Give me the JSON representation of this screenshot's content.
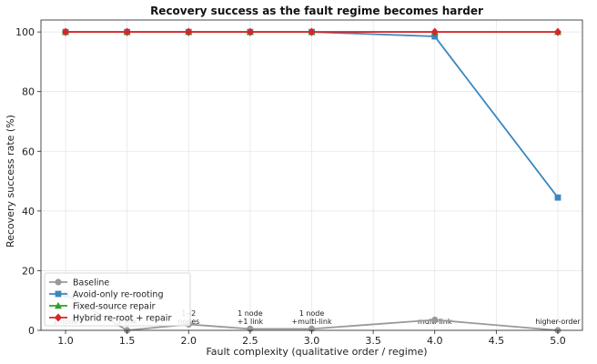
{
  "chart_data": {
    "type": "line",
    "title": "Recovery success as the fault regime becomes harder",
    "xlabel": "Fault complexity (qualitative order / regime)",
    "ylabel": "Recovery success rate (%)",
    "xlim": [
      0.8,
      5.2
    ],
    "ylim": [
      0,
      104
    ],
    "xticks": [
      "1.0",
      "1.5",
      "2.0",
      "2.5",
      "3.0",
      "3.5",
      "4.0",
      "4.5",
      "5.0"
    ],
    "yticks": [
      "0",
      "20",
      "40",
      "60",
      "80",
      "100"
    ],
    "grid": true,
    "legend_position": "bottom-left",
    "x": [
      1.0,
      1.5,
      2.0,
      2.5,
      3.0,
      4.0,
      5.0
    ],
    "series": [
      {
        "name": "Baseline",
        "color": "#999999",
        "marker": "circle",
        "values": [
          12,
          0,
          2,
          0.5,
          0.5,
          3.5,
          0
        ]
      },
      {
        "name": "Avoid-only re-rooting",
        "color": "#3a87c0",
        "marker": "square",
        "values": [
          100,
          100,
          100,
          100,
          100,
          98.5,
          44.5
        ]
      },
      {
        "name": "Fixed-source repair",
        "color": "#2ca02c",
        "marker": "triangle",
        "values": [
          100,
          100,
          100,
          100,
          100,
          100,
          100
        ]
      },
      {
        "name": "Hybrid re-root + repair",
        "color": "#d62728",
        "marker": "diamond",
        "values": [
          100,
          100,
          100,
          100,
          100,
          100,
          100
        ]
      }
    ],
    "annotations": [
      {
        "x": 1.0,
        "lines": [
          "1 node"
        ]
      },
      {
        "x": 1.5,
        "lines": [
          "1 link"
        ]
      },
      {
        "x": 2.0,
        "lines": [
          "1--2",
          "nodes"
        ]
      },
      {
        "x": 2.5,
        "lines": [
          "1 node",
          "+1 link"
        ]
      },
      {
        "x": 3.0,
        "lines": [
          "1 node",
          "+multi-link"
        ]
      },
      {
        "x": 4.0,
        "lines": [
          "multi-link"
        ]
      },
      {
        "x": 5.0,
        "lines": [
          "higher-order"
        ]
      }
    ]
  }
}
